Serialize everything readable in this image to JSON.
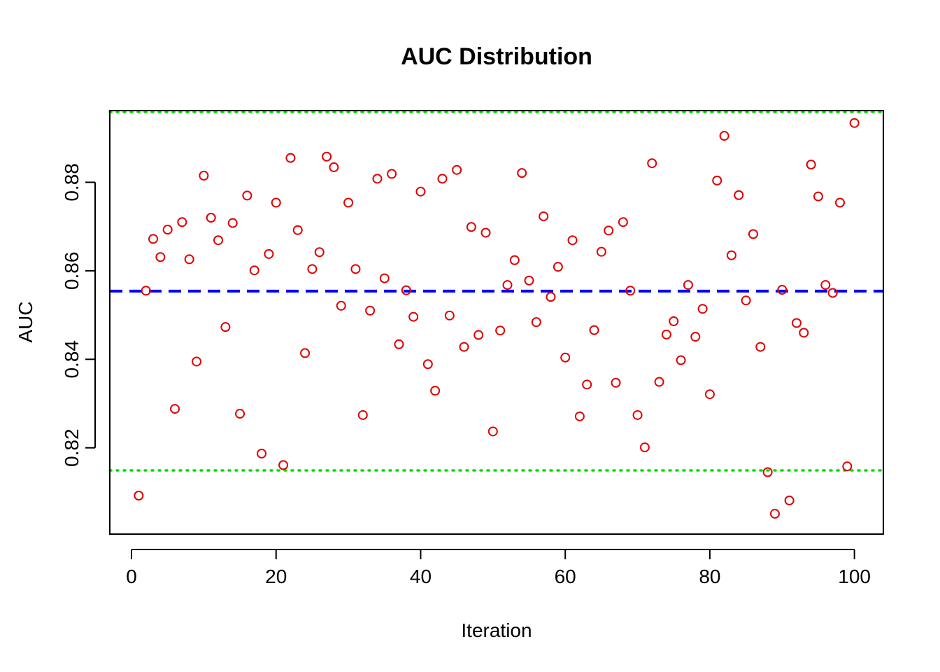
{
  "chart_data": {
    "type": "scatter",
    "title": "AUC Distribution",
    "xlabel": "Iteration",
    "ylabel": "AUC",
    "xlim": [
      -3,
      104
    ],
    "ylim": [
      0.8005,
      0.8962
    ],
    "xticks": [
      0,
      20,
      40,
      60,
      80,
      100
    ],
    "xtick_labels": [
      "0",
      "20",
      "40",
      "60",
      "80",
      "100"
    ],
    "yticks": [
      0.82,
      0.84,
      0.86,
      0.88
    ],
    "ytick_labels": [
      "0.82",
      "0.84",
      "0.86",
      "0.88"
    ],
    "grid": false,
    "legend": false,
    "point_color": "#e00000",
    "reference_lines": [
      {
        "kind": "mean",
        "y": 0.8554,
        "style": "dashed",
        "color": "#0000ff"
      },
      {
        "kind": "upper",
        "y": 0.8959,
        "style": "dotted",
        "color": "#00e000"
      },
      {
        "kind": "lower",
        "y": 0.8149,
        "style": "dotted",
        "color": "#00e000"
      }
    ],
    "series": [
      {
        "x": [
          1,
          2,
          3,
          4,
          5,
          6,
          7,
          8,
          9,
          10,
          11,
          12,
          13,
          14,
          15,
          16,
          17,
          18,
          19,
          20,
          21,
          22,
          23,
          24,
          25,
          26,
          27,
          28,
          29,
          30,
          31,
          32,
          33,
          34,
          35,
          36,
          37,
          38,
          39,
          40,
          41,
          42,
          43,
          44,
          45,
          46,
          47,
          48,
          49,
          50,
          51,
          52,
          53,
          54,
          55,
          56,
          57,
          58,
          59,
          60,
          61,
          62,
          63,
          64,
          65,
          66,
          67,
          68,
          69,
          70,
          71,
          72,
          73,
          74,
          75,
          76,
          77,
          78,
          79,
          80,
          81,
          82,
          83,
          84,
          85,
          86,
          87,
          88,
          89,
          90,
          91,
          92,
          93,
          94,
          95,
          96,
          97,
          98,
          99,
          100
        ],
        "y": [
          0.8092,
          0.8555,
          0.8672,
          0.8631,
          0.8693,
          0.8288,
          0.871,
          0.8626,
          0.8395,
          0.8815,
          0.872,
          0.8669,
          0.8473,
          0.8708,
          0.8277,
          0.877,
          0.8601,
          0.8187,
          0.8638,
          0.8754,
          0.8161,
          0.8855,
          0.8692,
          0.8414,
          0.8604,
          0.8642,
          0.8858,
          0.8834,
          0.8521,
          0.8754,
          0.8604,
          0.8274,
          0.851,
          0.8808,
          0.8583,
          0.8819,
          0.8434,
          0.8556,
          0.8496,
          0.8779,
          0.8389,
          0.8329,
          0.8808,
          0.8499,
          0.8828,
          0.8428,
          0.8699,
          0.8455,
          0.8686,
          0.8237,
          0.8465,
          0.8568,
          0.8624,
          0.8821,
          0.8578,
          0.8484,
          0.8723,
          0.8541,
          0.8609,
          0.8404,
          0.8669,
          0.8271,
          0.8343,
          0.8466,
          0.8643,
          0.8691,
          0.8347,
          0.871,
          0.8555,
          0.8274,
          0.8201,
          0.8843,
          0.8349,
          0.8456,
          0.8486,
          0.8398,
          0.8568,
          0.8451,
          0.8514,
          0.8321,
          0.8804,
          0.8905,
          0.8635,
          0.8771,
          0.8533,
          0.8683,
          0.8428,
          0.8145,
          0.8051,
          0.8557,
          0.8081,
          0.8482,
          0.846,
          0.884,
          0.8768,
          0.8568,
          0.855,
          0.8754,
          0.8158,
          0.8934
        ]
      }
    ]
  }
}
